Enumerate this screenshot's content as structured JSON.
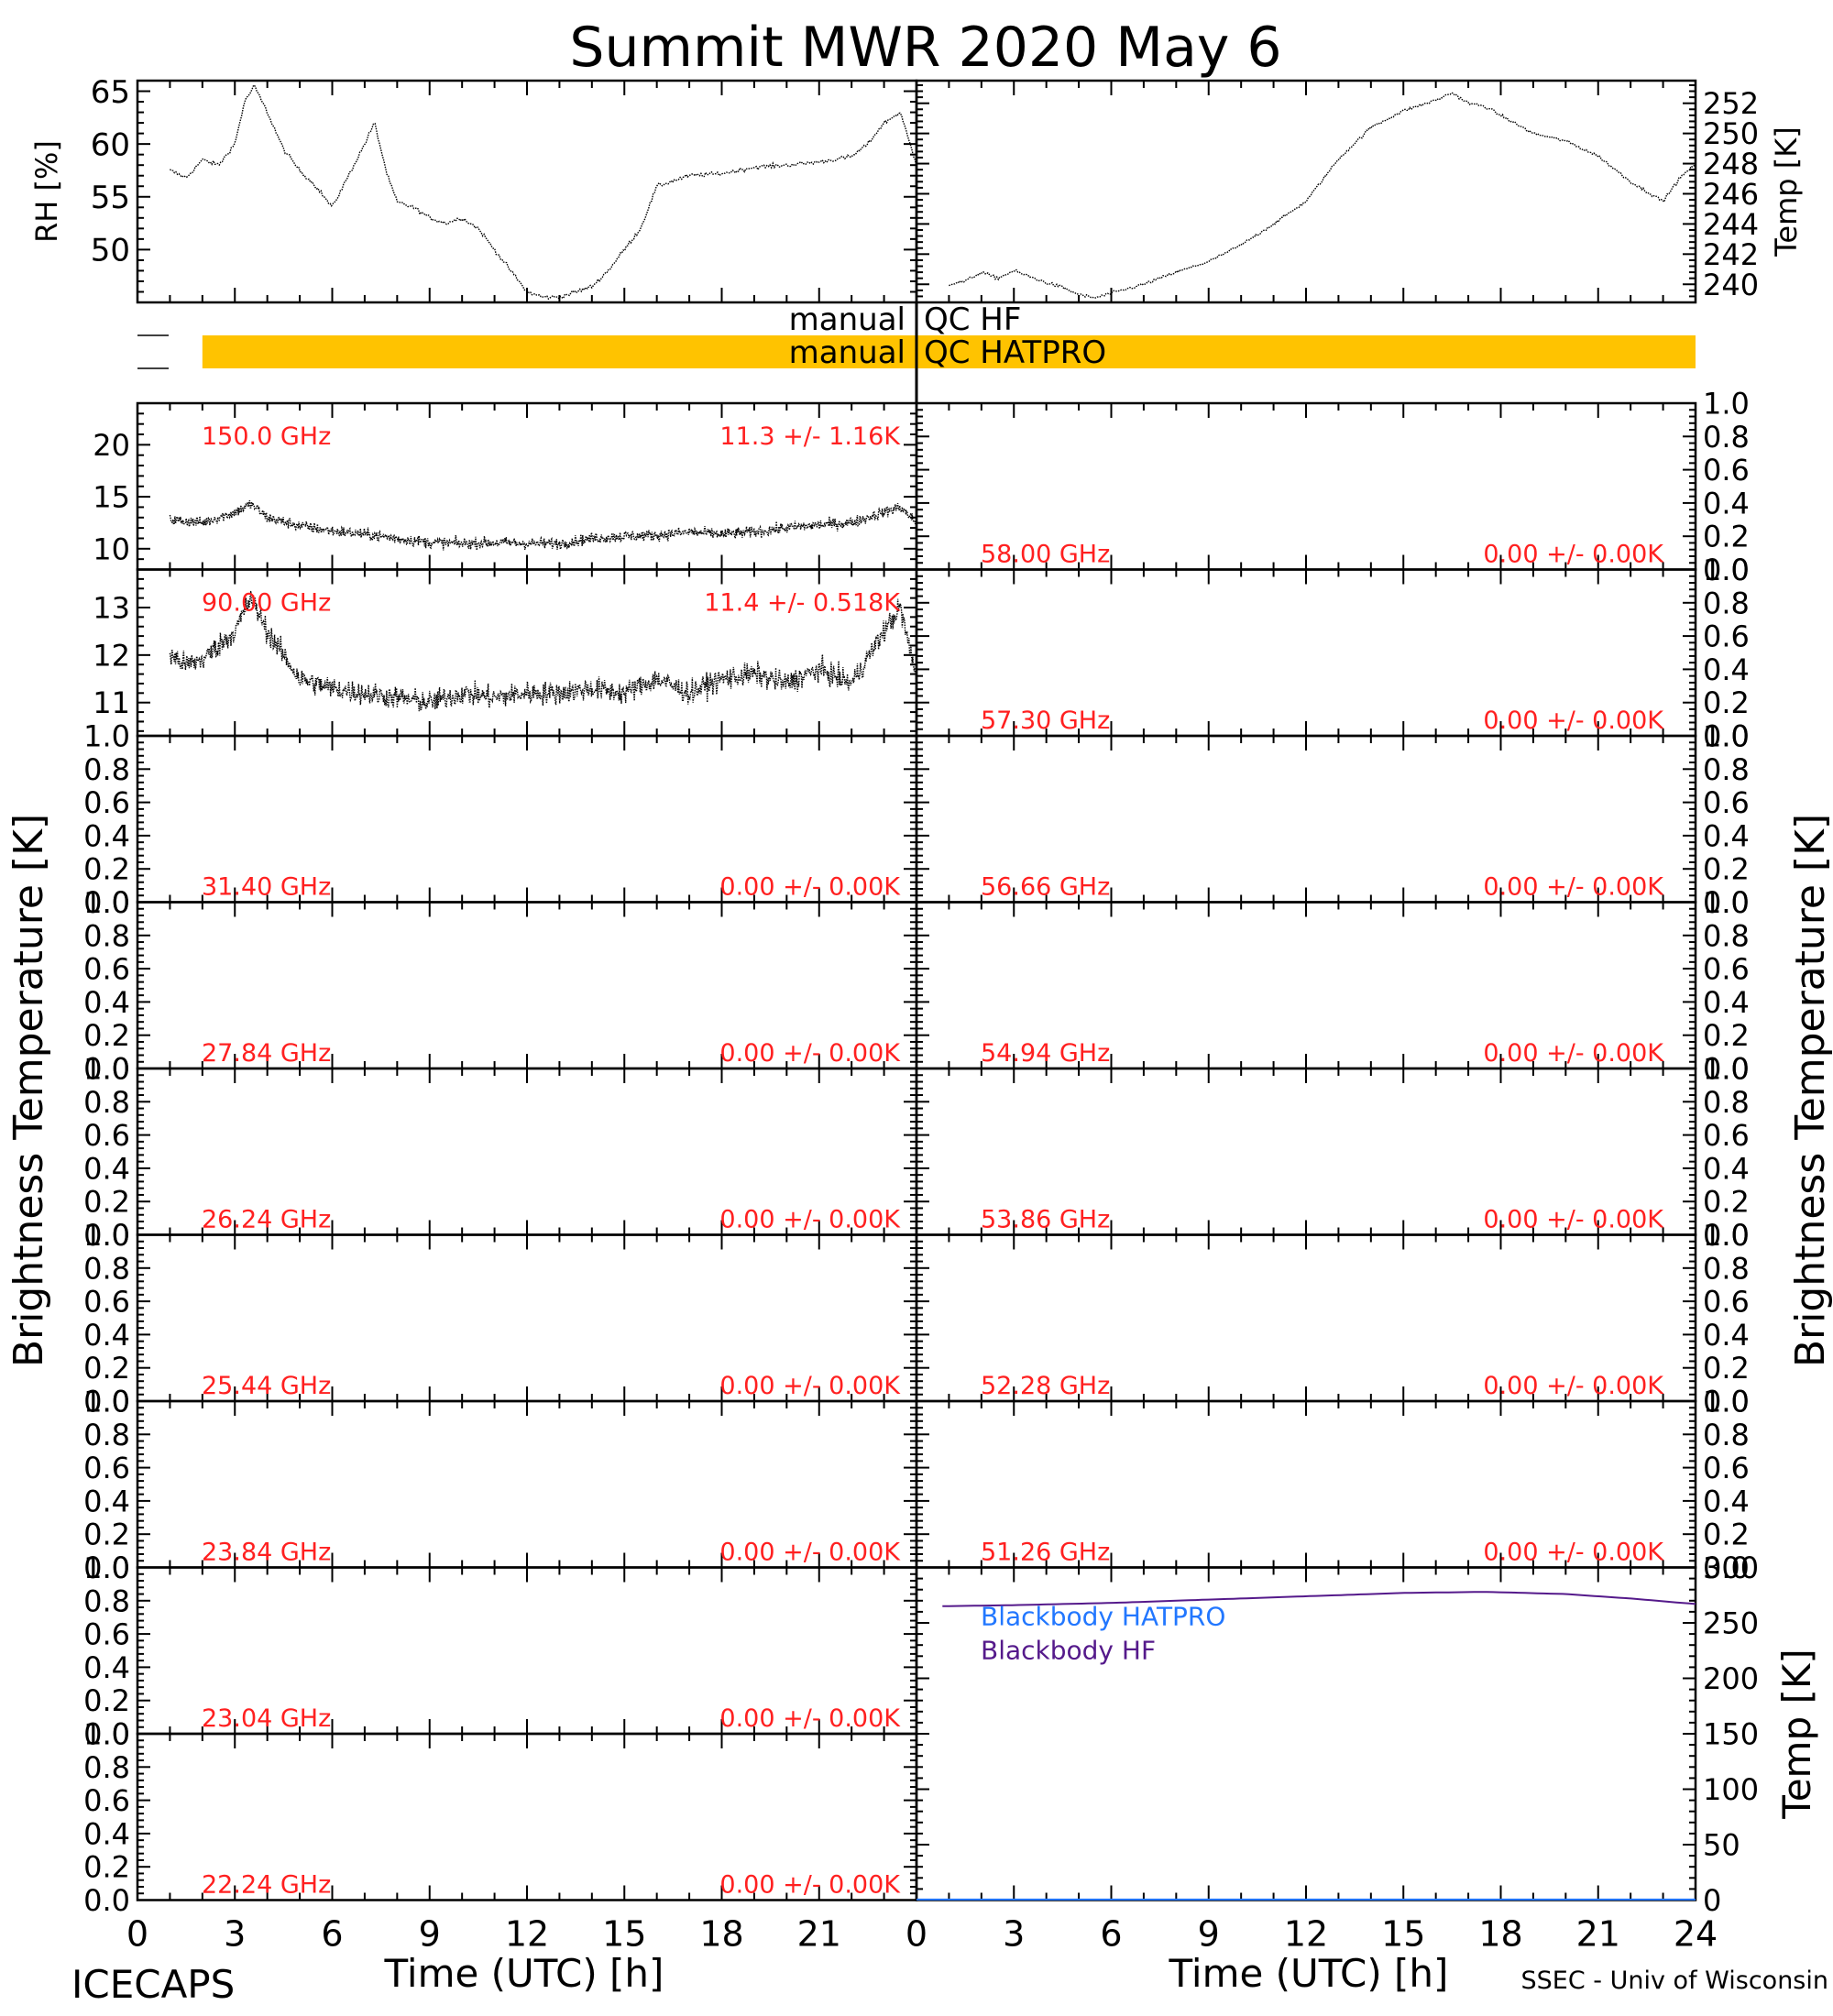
{
  "figure": {
    "title": "Summit MWR 2020 May  6",
    "footer_left": "ICECAPS",
    "footer_right": "SSEC - Univ of Wisconsin",
    "y_label_left": "Brightness Temperature [K]",
    "y_label_right": "Brightness Temperature [K]",
    "x_label_left": "Time (UTC) [h]",
    "x_label_right": "Time (UTC) [h]",
    "qc_label_hf": "manual QC HF",
    "qc_label_hatpro": "manual QC HATPRO",
    "colors": {
      "qc_bar": "#FFC300",
      "annotation": "#FF2020",
      "blackbody_hatpro": "#2277FF",
      "blackbody_hf": "#551A8B",
      "trace": "#000000"
    }
  },
  "chart_data": [
    {
      "id": "rh",
      "type": "line",
      "ylabel": "RH [%]",
      "xlim": [
        0,
        24
      ],
      "ylim": [
        45,
        66
      ],
      "yticks": [
        50,
        55,
        60,
        65
      ],
      "x": [
        1.0,
        1.5,
        2.0,
        2.5,
        3.0,
        3.3,
        3.6,
        4.0,
        4.5,
        5.0,
        5.5,
        6.0,
        6.5,
        7.0,
        7.3,
        7.7,
        8.0,
        8.5,
        9.0,
        9.5,
        10.0,
        10.5,
        11.0,
        11.5,
        12.0,
        12.5,
        13.0,
        13.5,
        14.0,
        14.5,
        15.0,
        15.5,
        16.0,
        16.5,
        17.0,
        18.0,
        19.0,
        20.0,
        21.0,
        22.0,
        22.5,
        23.0,
        23.5,
        24.0
      ],
      "y": [
        57.5,
        56.8,
        58.5,
        58,
        60,
        64,
        65.5,
        63,
        59.5,
        57.5,
        56,
        54,
        57,
        60,
        62,
        57,
        54.5,
        54,
        53,
        52.5,
        53,
        52,
        50,
        48,
        46,
        45.5,
        45.5,
        46,
        46.5,
        48,
        50,
        52,
        56,
        56.5,
        57,
        57.2,
        57.8,
        58,
        58.3,
        58.8,
        60,
        62,
        63,
        58
      ]
    },
    {
      "id": "temp",
      "type": "line",
      "ylabel": "Temp [K]",
      "xlim": [
        0,
        24
      ],
      "ylim": [
        238.8,
        253.5
      ],
      "yticks": [
        240,
        242,
        244,
        246,
        248,
        250,
        252
      ],
      "x": [
        1.0,
        1.5,
        2.0,
        2.5,
        3.0,
        3.5,
        4.0,
        4.5,
        5.0,
        5.5,
        6.0,
        7.0,
        8.0,
        9.0,
        10.0,
        11.0,
        12.0,
        13.0,
        14.0,
        15.0,
        16.0,
        16.5,
        17.0,
        17.5,
        18.0,
        19.0,
        20.0,
        21.0,
        22.0,
        23.0,
        23.5,
        24.0
      ],
      "y": [
        240,
        240.2,
        240.8,
        240.4,
        240.9,
        240.5,
        240.1,
        239.8,
        239.3,
        239.1,
        239.4,
        240,
        240.8,
        241.5,
        242.6,
        244,
        245.5,
        248.3,
        250.4,
        251.5,
        252.2,
        252.7,
        252,
        251.8,
        251.2,
        250,
        249.5,
        248.5,
        246.8,
        245.5,
        247,
        248
      ]
    },
    {
      "id": "tb-150.0",
      "freq_label": "150.0 GHz",
      "stat_label": "11.3 +/-  1.16K",
      "ylim": [
        8,
        24
      ],
      "yticks": [
        10,
        15,
        20
      ],
      "mean": 11.3,
      "std": 1.16,
      "x": [
        1,
        2,
        3,
        3.5,
        4,
        5,
        6,
        7,
        8,
        9,
        10,
        11,
        12,
        13,
        14,
        15,
        16,
        17,
        18,
        19,
        20,
        21,
        22,
        23,
        23.5,
        24
      ],
      "y": [
        12.8,
        12.5,
        13.5,
        14.3,
        13,
        12.2,
        11.7,
        11.4,
        11,
        10.6,
        10.5,
        10.6,
        10.5,
        10.5,
        11,
        11.2,
        11.3,
        11.6,
        11.4,
        11.6,
        12,
        12.3,
        12.5,
        13.5,
        14,
        12.5
      ]
    },
    {
      "id": "tb-58.00",
      "freq_label": "58.00 GHz",
      "stat_label": "0.00 +/-  0.00K",
      "ylim": [
        0,
        1
      ],
      "yticks": [
        0.0,
        0.2,
        0.4,
        0.6,
        0.8,
        1.0
      ]
    },
    {
      "id": "tb-90.00",
      "freq_label": "90.00 GHz",
      "stat_label": "11.4 +/- 0.518K",
      "ylim": [
        10.3,
        13.8
      ],
      "yticks": [
        11,
        12,
        13
      ],
      "mean": 11.4,
      "std": 0.518,
      "x": [
        1,
        1.5,
        2,
        3,
        3.5,
        4,
        4.5,
        5,
        6,
        7,
        8,
        9,
        10,
        11,
        12,
        13,
        14,
        15,
        16,
        17,
        18,
        19,
        20,
        21,
        22,
        23,
        23.5,
        24
      ],
      "y": [
        12,
        11.8,
        11.9,
        12.5,
        13.2,
        12.5,
        12,
        11.5,
        11.3,
        11.2,
        11.1,
        11,
        11.2,
        11.1,
        11.2,
        11.2,
        11.3,
        11.2,
        11.5,
        11.2,
        11.5,
        11.6,
        11.4,
        11.7,
        11.4,
        12.5,
        13,
        11.5
      ]
    },
    {
      "id": "tb-57.30",
      "freq_label": "57.30 GHz",
      "stat_label": "0.00 +/-  0.00K",
      "ylim": [
        0,
        1
      ],
      "yticks": [
        0.0,
        0.2,
        0.4,
        0.6,
        0.8,
        1.0
      ]
    },
    {
      "id": "tb-31.40",
      "freq_label": "31.40 GHz",
      "stat_label": "0.00 +/-  0.00K",
      "ylim": [
        0,
        1
      ],
      "yticks": [
        0.0,
        0.2,
        0.4,
        0.6,
        0.8,
        1.0
      ]
    },
    {
      "id": "tb-56.66",
      "freq_label": "56.66 GHz",
      "stat_label": "0.00 +/-  0.00K",
      "ylim": [
        0,
        1
      ],
      "yticks": [
        0.0,
        0.2,
        0.4,
        0.6,
        0.8,
        1.0
      ]
    },
    {
      "id": "tb-27.84",
      "freq_label": "27.84 GHz",
      "stat_label": "0.00 +/-  0.00K",
      "ylim": [
        0,
        1
      ],
      "yticks": [
        0.0,
        0.2,
        0.4,
        0.6,
        0.8,
        1.0
      ]
    },
    {
      "id": "tb-54.94",
      "freq_label": "54.94 GHz",
      "stat_label": "0.00 +/-  0.00K",
      "ylim": [
        0,
        1
      ],
      "yticks": [
        0.0,
        0.2,
        0.4,
        0.6,
        0.8,
        1.0
      ]
    },
    {
      "id": "tb-26.24",
      "freq_label": "26.24 GHz",
      "stat_label": "0.00 +/-  0.00K",
      "ylim": [
        0,
        1
      ],
      "yticks": [
        0.0,
        0.2,
        0.4,
        0.6,
        0.8,
        1.0
      ]
    },
    {
      "id": "tb-53.86",
      "freq_label": "53.86 GHz",
      "stat_label": "0.00 +/-  0.00K",
      "ylim": [
        0,
        1
      ],
      "yticks": [
        0.0,
        0.2,
        0.4,
        0.6,
        0.8,
        1.0
      ]
    },
    {
      "id": "tb-25.44",
      "freq_label": "25.44 GHz",
      "stat_label": "0.00 +/-  0.00K",
      "ylim": [
        0,
        1
      ],
      "yticks": [
        0.0,
        0.2,
        0.4,
        0.6,
        0.8,
        1.0
      ]
    },
    {
      "id": "tb-52.28",
      "freq_label": "52.28 GHz",
      "stat_label": "0.00 +/-  0.00K",
      "ylim": [
        0,
        1
      ],
      "yticks": [
        0.0,
        0.2,
        0.4,
        0.6,
        0.8,
        1.0
      ]
    },
    {
      "id": "tb-23.84",
      "freq_label": "23.84 GHz",
      "stat_label": "0.00 +/-  0.00K",
      "ylim": [
        0,
        1
      ],
      "yticks": [
        0.0,
        0.2,
        0.4,
        0.6,
        0.8,
        1.0
      ]
    },
    {
      "id": "tb-51.26",
      "freq_label": "51.26 GHz",
      "stat_label": "0.00 +/-  0.00K",
      "ylim": [
        0,
        1
      ],
      "yticks": [
        0.0,
        0.2,
        0.4,
        0.6,
        0.8,
        1.0
      ]
    },
    {
      "id": "tb-23.04",
      "freq_label": "23.04 GHz",
      "stat_label": "0.00 +/-  0.00K",
      "ylim": [
        0,
        1
      ],
      "yticks": [
        0.0,
        0.2,
        0.4,
        0.6,
        0.8,
        1.0
      ]
    },
    {
      "id": "tb-22.24",
      "freq_label": "22.24 GHz",
      "stat_label": "0.00 +/-  0.00K",
      "ylim": [
        0,
        1
      ],
      "yticks": [
        0.0,
        0.2,
        0.4,
        0.6,
        0.8,
        1.0
      ]
    },
    {
      "id": "blackbody",
      "type": "line",
      "ylabel": "Temp [K]",
      "ylim": [
        0,
        300
      ],
      "yticks": [
        0,
        50,
        100,
        150,
        200,
        250,
        300
      ],
      "legend": [
        "Blackbody HATPRO",
        "Blackbody HF"
      ],
      "series": [
        {
          "name": "Blackbody HF",
          "x": [
            0.8,
            3,
            6,
            9,
            12,
            15,
            17.5,
            20,
            22,
            24
          ],
          "y": [
            265,
            266,
            268,
            271,
            274,
            277,
            278,
            276,
            272,
            267
          ]
        },
        {
          "name": "Blackbody HATPRO",
          "x": [
            0,
            24
          ],
          "y": [
            0.5,
            0.5
          ]
        }
      ]
    }
  ],
  "x_ticks": [
    0,
    3,
    6,
    9,
    12,
    15,
    18,
    21,
    24
  ],
  "x_tick_labels_left": [
    "0",
    "3",
    "6",
    "9",
    "12",
    "15",
    "18",
    "21"
  ],
  "x_tick_labels_right": [
    "0",
    "3",
    "6",
    "9",
    "12",
    "15",
    "18",
    "21",
    "24"
  ],
  "qc_bars": {
    "hf": [],
    "hatpro": [
      [
        1.0,
        24.0
      ]
    ]
  }
}
